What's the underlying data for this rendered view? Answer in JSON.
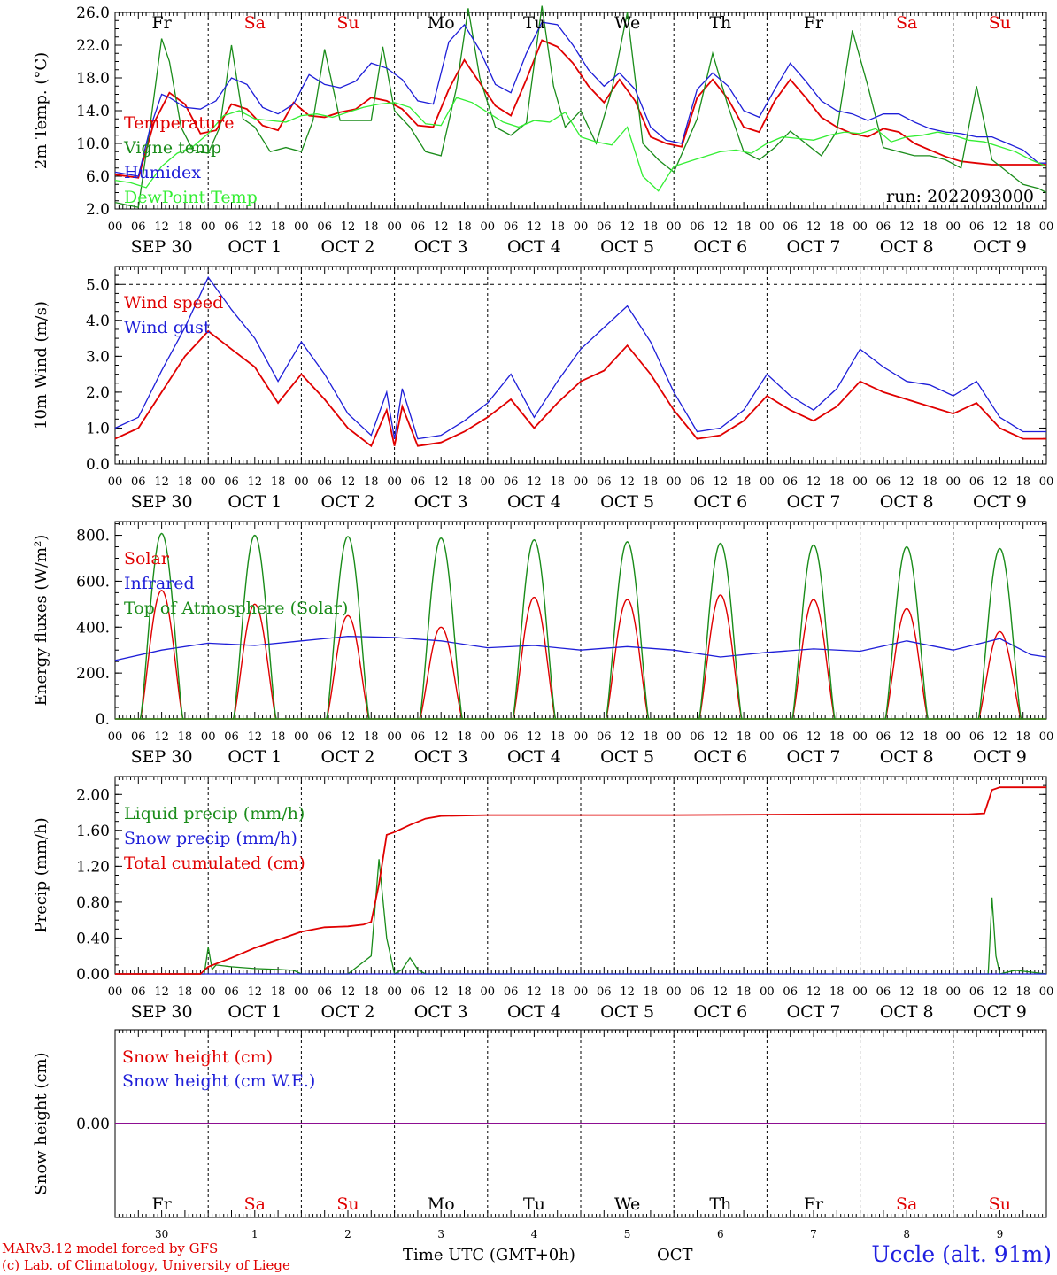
{
  "run_label": "run: 2022093000",
  "credits": [
    "MARv3.12 model forced by GFS",
    "(c) Lab. of Climatology, University of Liege"
  ],
  "station": "Uccle (alt. 91m)",
  "time_axis_label": "Time UTC (GMT+0h)",
  "month_label": "OCT",
  "colors": {
    "red": "#e00000",
    "green": "#1a8c1a",
    "blue": "#1e1ed8",
    "lightgreen": "#33ee33",
    "purple": "#8000a0",
    "black": "#000000"
  },
  "days": [
    {
      "dow": "Fr",
      "date": "SEP 30",
      "num": "30",
      "weekend": false
    },
    {
      "dow": "Sa",
      "date": "OCT  1",
      "num": "1",
      "weekend": true
    },
    {
      "dow": "Su",
      "date": "OCT  2",
      "num": "2",
      "weekend": true
    },
    {
      "dow": "Mo",
      "date": "OCT  3",
      "num": "3",
      "weekend": false
    },
    {
      "dow": "Tu",
      "date": "OCT  4",
      "num": "4",
      "weekend": false
    },
    {
      "dow": "We",
      "date": "OCT  5",
      "num": "5",
      "weekend": false
    },
    {
      "dow": "Th",
      "date": "OCT  6",
      "num": "6",
      "weekend": false
    },
    {
      "dow": "Fr",
      "date": "OCT  7",
      "num": "7",
      "weekend": false
    },
    {
      "dow": "Sa",
      "date": "OCT  8",
      "num": "8",
      "weekend": true
    },
    {
      "dow": "Su",
      "date": "OCT  9",
      "num": "9",
      "weekend": true
    }
  ],
  "hour_ticks": [
    "00",
    "06",
    "12",
    "18"
  ],
  "chart_data": [
    {
      "type": "line",
      "ylabel": "2m Temp. (°C)",
      "ylim": [
        2.0,
        26.0
      ],
      "yticks": [
        "2.0",
        "6.0",
        "10.0",
        "14.0",
        "18.0",
        "22.0",
        "26.0"
      ],
      "x_unit": "hours since 2022-09-30 00 UTC",
      "series": [
        {
          "name": "Temperature",
          "color": "red",
          "x": [
            0,
            6,
            10,
            14,
            18,
            22,
            26,
            30,
            34,
            38,
            42,
            46,
            50,
            54,
            58,
            62,
            66,
            70,
            74,
            78,
            82,
            86,
            90,
            94,
            98,
            102,
            106,
            110,
            114,
            118,
            122,
            126,
            130,
            134,
            138,
            142,
            146,
            150,
            154,
            158,
            162,
            166,
            170,
            174,
            178,
            182,
            186,
            190,
            194,
            198,
            202,
            206,
            210,
            214,
            218,
            222,
            226,
            230,
            234,
            238,
            240
          ],
          "y": [
            6.2,
            5.8,
            12.5,
            16.2,
            14.8,
            11.2,
            11.6,
            14.8,
            14.2,
            12.2,
            11.6,
            15.0,
            13.4,
            13.2,
            13.8,
            14.2,
            15.6,
            15.2,
            14.2,
            12.2,
            12.0,
            16.6,
            20.2,
            17.4,
            14.6,
            13.4,
            17.8,
            22.6,
            21.8,
            19.8,
            17.0,
            15.0,
            17.8,
            15.2,
            10.8,
            10.0,
            9.6,
            15.6,
            17.8,
            15.4,
            12.0,
            11.4,
            15.2,
            17.8,
            15.6,
            13.2,
            12.0,
            11.2,
            10.8,
            11.8,
            11.4,
            10.0,
            9.2,
            8.4,
            7.8,
            7.6,
            7.4,
            7.4,
            7.4,
            7.4,
            7.4
          ]
        },
        {
          "name": "Vigne temp",
          "color": "green",
          "x": [
            0,
            6,
            9,
            12,
            14,
            17,
            20,
            24,
            27,
            30,
            33,
            36,
            40,
            44,
            48,
            51,
            54,
            58,
            62,
            66,
            69,
            72,
            76,
            80,
            84,
            88,
            91,
            94,
            98,
            102,
            106,
            110,
            113,
            116,
            120,
            124,
            128,
            132,
            136,
            140,
            144,
            150,
            154,
            158,
            162,
            166,
            170,
            174,
            178,
            182,
            186,
            190,
            194,
            198,
            202,
            206,
            210,
            214,
            218,
            222,
            226,
            230,
            234,
            238,
            240
          ],
          "y": [
            2.8,
            2.2,
            12.0,
            22.8,
            20.0,
            12.0,
            9.2,
            8.8,
            12.0,
            22.0,
            13.0,
            12.0,
            9.0,
            9.5,
            9.0,
            12.8,
            21.5,
            12.8,
            12.8,
            12.8,
            21.8,
            14.0,
            12.0,
            9.0,
            8.5,
            16.8,
            26.5,
            18.0,
            12.0,
            11.0,
            12.5,
            26.8,
            17.0,
            12.0,
            14.0,
            10.0,
            16.5,
            26.0,
            10.0,
            8.0,
            6.5,
            13.0,
            21.0,
            14.5,
            9.0,
            8.0,
            9.5,
            11.5,
            10.0,
            8.5,
            11.5,
            23.8,
            17.0,
            9.5,
            9.0,
            8.5,
            8.5,
            8.0,
            7.0,
            17.0,
            8.0,
            6.5,
            5.0,
            4.5,
            4.0
          ]
        },
        {
          "name": "Humidex",
          "color": "blue",
          "x": [
            0,
            6,
            9,
            12,
            14,
            18,
            22,
            26,
            30,
            34,
            38,
            42,
            46,
            50,
            54,
            58,
            62,
            66,
            70,
            74,
            78,
            82,
            86,
            90,
            94,
            98,
            102,
            106,
            110,
            114,
            118,
            122,
            126,
            130,
            134,
            138,
            142,
            146,
            150,
            154,
            158,
            162,
            166,
            170,
            174,
            178,
            182,
            186,
            190,
            194,
            198,
            202,
            206,
            210,
            214,
            218,
            222,
            226,
            230,
            234,
            238,
            240
          ],
          "y": [
            6.5,
            6.0,
            11.8,
            16.0,
            15.6,
            14.4,
            14.2,
            15.2,
            18.0,
            17.2,
            14.4,
            13.6,
            14.8,
            18.4,
            17.2,
            16.8,
            17.6,
            19.8,
            19.2,
            17.8,
            15.2,
            14.8,
            22.4,
            24.5,
            21.4,
            17.2,
            16.2,
            21.0,
            24.8,
            24.5,
            22.0,
            19.0,
            17.0,
            18.6,
            16.6,
            12.0,
            10.4,
            10.0,
            16.6,
            18.6,
            17.0,
            14.0,
            13.2,
            16.6,
            19.8,
            17.6,
            15.2,
            14.0,
            13.6,
            12.8,
            13.6,
            13.6,
            12.6,
            11.8,
            11.4,
            11.2,
            10.8,
            10.8,
            10.0,
            9.2,
            7.6,
            7.6
          ]
        },
        {
          "name": "DewPoint Temp",
          "color": "lightgreen",
          "x": [
            0,
            4,
            8,
            12,
            16,
            20,
            24,
            28,
            32,
            36,
            40,
            44,
            48,
            52,
            56,
            60,
            64,
            68,
            72,
            76,
            80,
            84,
            88,
            92,
            96,
            100,
            104,
            108,
            112,
            116,
            120,
            124,
            128,
            132,
            136,
            140,
            144,
            148,
            152,
            156,
            160,
            164,
            168,
            172,
            176,
            180,
            184,
            188,
            192,
            196,
            200,
            204,
            208,
            212,
            216,
            220,
            224,
            228,
            232,
            236,
            240
          ],
          "y": [
            5.5,
            5.2,
            4.6,
            7.2,
            8.8,
            9.6,
            11.2,
            13.4,
            14.0,
            13.0,
            12.8,
            12.6,
            13.4,
            13.6,
            13.2,
            13.8,
            14.4,
            14.8,
            15.0,
            14.4,
            12.4,
            12.2,
            15.6,
            15.0,
            13.8,
            12.6,
            12.0,
            12.8,
            12.6,
            13.8,
            10.8,
            10.2,
            9.8,
            12.0,
            6.0,
            4.2,
            7.2,
            7.8,
            8.4,
            9.0,
            9.2,
            8.8,
            10.0,
            10.8,
            10.6,
            10.4,
            11.0,
            11.4,
            11.2,
            11.8,
            10.2,
            10.8,
            11.0,
            11.4,
            11.0,
            10.4,
            10.2,
            9.6,
            9.0,
            8.0,
            7.2
          ]
        }
      ]
    },
    {
      "type": "line",
      "ylabel": "10m Wind (m/s)",
      "ylim": [
        0.0,
        5.5
      ],
      "yticks": [
        "0.0",
        "1.0",
        "2.0",
        "3.0",
        "4.0",
        "5.0"
      ],
      "x_unit": "hours since 2022-09-30 00 UTC",
      "series": [
        {
          "name": "Wind speed",
          "color": "red",
          "x": [
            0,
            6,
            12,
            18,
            24,
            30,
            36,
            42,
            48,
            54,
            60,
            66,
            70,
            72,
            74,
            78,
            84,
            90,
            96,
            102,
            108,
            114,
            120,
            126,
            132,
            138,
            144,
            150,
            156,
            162,
            168,
            174,
            180,
            186,
            192,
            198,
            204,
            210,
            216,
            222,
            228,
            234,
            238,
            240
          ],
          "y": [
            0.7,
            1.0,
            2.0,
            3.0,
            3.7,
            3.2,
            2.7,
            1.7,
            2.5,
            1.8,
            1.0,
            0.5,
            1.5,
            0.5,
            1.6,
            0.5,
            0.6,
            0.9,
            1.3,
            1.8,
            1.0,
            1.7,
            2.3,
            2.6,
            3.3,
            2.5,
            1.5,
            0.7,
            0.8,
            1.2,
            1.9,
            1.5,
            1.2,
            1.6,
            2.3,
            2.0,
            1.8,
            1.6,
            1.4,
            1.7,
            1.0,
            0.7,
            0.7,
            0.7
          ]
        },
        {
          "name": "Wind gust",
          "color": "blue",
          "x": [
            0,
            6,
            12,
            18,
            24,
            30,
            36,
            42,
            48,
            54,
            60,
            66,
            70,
            72,
            74,
            78,
            84,
            90,
            96,
            102,
            108,
            114,
            120,
            126,
            132,
            138,
            144,
            150,
            156,
            162,
            168,
            174,
            180,
            186,
            192,
            198,
            204,
            210,
            216,
            222,
            228,
            234,
            238,
            240
          ],
          "y": [
            1.0,
            1.3,
            2.6,
            3.8,
            5.2,
            4.3,
            3.5,
            2.3,
            3.4,
            2.5,
            1.4,
            0.8,
            2.0,
            0.7,
            2.1,
            0.7,
            0.8,
            1.2,
            1.7,
            2.5,
            1.3,
            2.3,
            3.2,
            3.8,
            4.4,
            3.4,
            2.0,
            0.9,
            1.0,
            1.5,
            2.5,
            1.9,
            1.5,
            2.1,
            3.2,
            2.7,
            2.3,
            2.2,
            1.9,
            2.3,
            1.3,
            0.9,
            0.9,
            0.9
          ]
        }
      ]
    },
    {
      "type": "line",
      "ylabel": "Energy fluxes (W/m²)",
      "ylim": [
        0,
        860
      ],
      "yticks": [
        "0.",
        "200.",
        "400.",
        "600.",
        "800."
      ],
      "x_unit": "hours since 2022-09-30 00 UTC",
      "series": [
        {
          "name": "Solar",
          "color": "red",
          "daily_peaks": [
            560,
            500,
            450,
            400,
            530,
            520,
            540,
            520,
            480,
            380
          ]
        },
        {
          "name": "Infrared",
          "color": "blue",
          "x": [
            0,
            12,
            24,
            36,
            48,
            60,
            72,
            84,
            96,
            108,
            120,
            132,
            144,
            156,
            168,
            180,
            192,
            204,
            216,
            228,
            236,
            240
          ],
          "y": [
            255,
            300,
            330,
            320,
            340,
            360,
            355,
            340,
            310,
            320,
            300,
            315,
            300,
            270,
            290,
            305,
            295,
            340,
            300,
            350,
            280,
            270
          ]
        },
        {
          "name": "Top of Atmosphere (Solar)",
          "color": "green",
          "daily_peaks": [
            808,
            800,
            795,
            788,
            780,
            772,
            765,
            758,
            750,
            742
          ]
        }
      ]
    },
    {
      "type": "line",
      "ylabel": "Precip (mm/h)",
      "ylim": [
        0.0,
        2.2
      ],
      "yticks": [
        "0.00",
        "0.40",
        "0.80",
        "1.20",
        "1.60",
        "2.00"
      ],
      "x_unit": "hours since 2022-09-30 00 UTC",
      "series": [
        {
          "name": "Liquid precip (mm/h)",
          "color": "green",
          "x": [
            0,
            23,
            24,
            25,
            26,
            30,
            36,
            42,
            46,
            48,
            60,
            66,
            68,
            70,
            72,
            74,
            76,
            78,
            80,
            96,
            216,
            225,
            226,
            227,
            228,
            232,
            240
          ],
          "y": [
            0,
            0,
            0.3,
            0.05,
            0.1,
            0.08,
            0.06,
            0.05,
            0.04,
            0,
            0,
            0.2,
            1.28,
            0.4,
            0,
            0.05,
            0.18,
            0.05,
            0,
            0,
            0,
            0,
            0.85,
            0.2,
            0,
            0.04,
            0
          ]
        },
        {
          "name": "Snow precip (mm/h)",
          "color": "blue",
          "x": [
            0,
            240
          ],
          "y": [
            0,
            0
          ]
        },
        {
          "name": "Total cumulated (cm)",
          "color": "red",
          "x": [
            0,
            22,
            24,
            30,
            36,
            42,
            48,
            54,
            60,
            64,
            66,
            68,
            70,
            72,
            76,
            80,
            84,
            96,
            144,
            192,
            220,
            224,
            226,
            228,
            240
          ],
          "y": [
            0,
            0,
            0.08,
            0.18,
            0.29,
            0.38,
            0.47,
            0.52,
            0.53,
            0.55,
            0.58,
            1.0,
            1.55,
            1.58,
            1.66,
            1.73,
            1.76,
            1.77,
            1.77,
            1.78,
            1.78,
            1.79,
            2.05,
            2.08,
            2.08
          ]
        }
      ]
    },
    {
      "type": "line",
      "ylabel": "Snow height (cm)",
      "ylim": [
        -1.0,
        1.0
      ],
      "yticks": [
        "0.00"
      ],
      "x_unit": "hours since 2022-09-30 00 UTC",
      "series": [
        {
          "name": "Snow height (cm)",
          "color": "red",
          "x": [
            0,
            240
          ],
          "y": [
            0,
            0
          ]
        },
        {
          "name": "Snow height (cm W.E.)",
          "color": "blue",
          "x": [
            0,
            240
          ],
          "y": [
            0,
            0
          ]
        }
      ]
    }
  ]
}
